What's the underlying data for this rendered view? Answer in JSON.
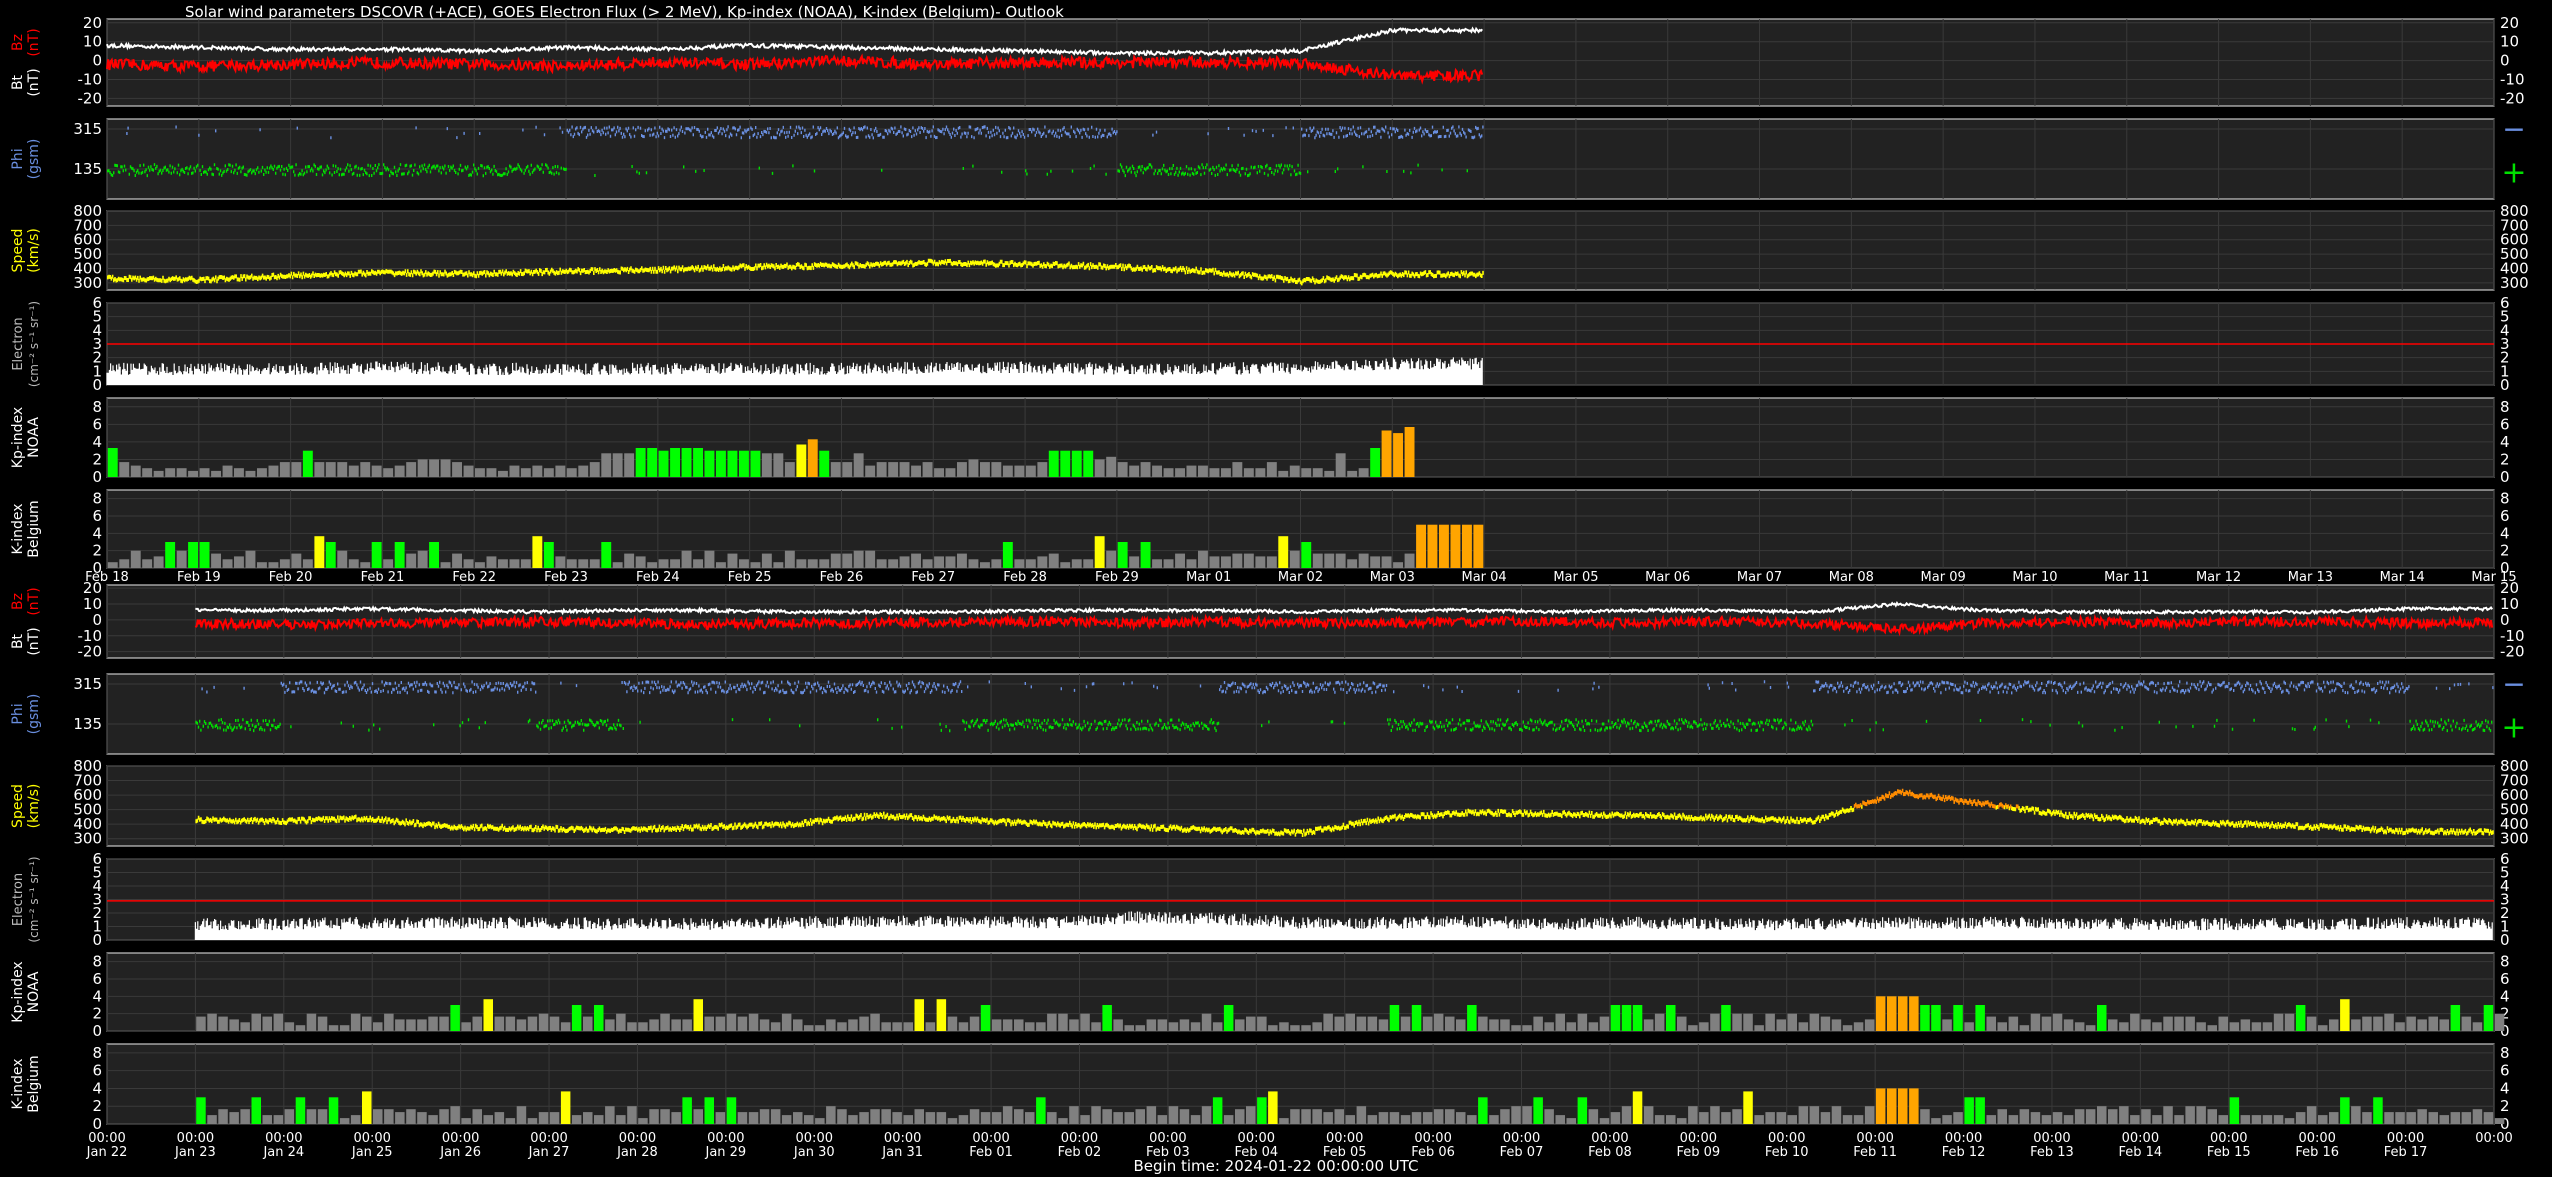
{
  "header": {
    "title": "Solar wind parameters DSCOVR (+ACE), GOES Electron Flux (> 2 MeV), Kp-index (NOAA), K-index (Belgium)- Outlook"
  },
  "footer": {
    "begin_time": "Begin time: 2024-01-22 00:00:00 UTC"
  },
  "colors": {
    "bz": "#ff0000",
    "bt": "#ffffff",
    "phi_away": "#6a8fe0",
    "phi_toward": "#00e000",
    "speed": "#ffff00",
    "speed_high": "#ff8c00",
    "electron": "#ffffff",
    "electron_threshold": "#ff0000",
    "k_quiet": "#808080",
    "k_active": "#00ff00",
    "k_minor": "#ffff00",
    "k_moderate": "#ffa500",
    "k_strong": "#ff0000",
    "panel_bg": "#222222",
    "grid": "#3a3a3a"
  },
  "chart_data": [
    {
      "type": "multi-panel",
      "name": "upper",
      "x_tick_labels": [
        "Feb 18",
        "Feb 19",
        "Feb 20",
        "Feb 21",
        "Feb 22",
        "Feb 23",
        "Feb 24",
        "Feb 25",
        "Feb 26",
        "Feb 27",
        "Feb 28",
        "Feb 29",
        "Mar 01",
        "Mar 02",
        "Mar 03",
        "Mar 04",
        "Mar 05",
        "Mar 06",
        "Mar 07",
        "Mar 08",
        "Mar 09",
        "Mar 10",
        "Mar 11",
        "Mar 12",
        "Mar 13",
        "Mar 14",
        "Mar 15"
      ],
      "x_start": "2024-02-18",
      "data_days_shown": 15.0,
      "panels": [
        {
          "id": "bz-bt",
          "ylabel": [
            "Bt",
            "(nT)"
          ],
          "ylabel_red": [
            "Bz",
            "(nT)"
          ],
          "yticks": [
            -20,
            -10,
            0,
            10,
            20
          ],
          "ylim": [
            -24,
            22
          ],
          "series": [
            {
              "name": "Bt",
              "values": [
                8,
                7,
                6,
                6,
                5,
                7,
                6,
                8,
                7,
                6,
                5,
                4,
                4,
                5,
                16
              ]
            },
            {
              "name": "Bz",
              "values": [
                -2,
                -3,
                -2,
                -1,
                -2,
                -3,
                -1,
                -2,
                0,
                -2,
                -1,
                -1,
                -1,
                -1,
                -8
              ]
            }
          ]
        },
        {
          "id": "phi",
          "ylabel": [
            "Phi",
            "(gsm)"
          ],
          "yticks": [
            135,
            315
          ],
          "sign_labels": [
            "−",
            "+"
          ],
          "away_days": [
            0,
            0,
            0,
            0,
            0,
            1,
            1,
            1,
            1,
            1,
            1,
            0,
            0,
            1,
            1
          ],
          "k": 0
        },
        {
          "id": "speed",
          "ylabel": [
            "Speed",
            "(km/s)"
          ],
          "yticks": [
            300,
            400,
            500,
            600,
            700,
            800
          ],
          "ylim": [
            250,
            800
          ],
          "values": [
            330,
            320,
            350,
            370,
            360,
            380,
            390,
            410,
            420,
            440,
            430,
            410,
            380,
            310,
            360
          ]
        },
        {
          "id": "electron",
          "ylabel": [
            "Electron",
            "(cm⁻² s⁻¹ sr⁻¹)"
          ],
          "yticks": [
            0,
            1,
            2,
            3,
            4,
            5,
            6
          ],
          "ylim": [
            0,
            6
          ],
          "threshold": 3,
          "values": [
            1.0,
            1.0,
            1.0,
            1.1,
            1.0,
            1.0,
            1.0,
            1.0,
            1.0,
            1.1,
            1.1,
            1.0,
            1.0,
            1.1,
            1.4
          ]
        },
        {
          "id": "kp",
          "ylabel": [
            "Kp-index",
            "NOAA"
          ],
          "yticks": [
            0,
            2,
            4,
            6,
            8
          ],
          "ylim": [
            0,
            9
          ],
          "values": [
            3.3,
            1.7,
            1.3,
            1,
            0.7,
            1,
            1,
            0.7,
            1,
            0.7,
            1.3,
            1,
            0.7,
            1,
            1.3,
            1.7,
            1.7,
            3,
            1.7,
            1.7,
            1.7,
            1.3,
            1.7,
            1.3,
            1,
            1.3,
            1.7,
            2,
            2,
            2,
            1.7,
            1.3,
            1,
            1,
            0.7,
            1.3,
            1,
            1.3,
            1,
            1.3,
            1,
            1.3,
            1.7,
            2.7,
            2.7,
            2.7,
            3.3,
            3.3,
            3,
            3.3,
            3.3,
            3.3,
            3,
            3,
            3,
            3,
            3,
            2.7,
            2.7,
            1.7,
            3.7,
            4.3,
            3,
            1.7,
            1.7,
            2.7,
            1.3,
            1.7,
            1.7,
            1.7,
            1.3,
            1.7,
            1,
            1,
            1.7,
            2,
            1.7,
            1.7,
            1.3,
            1.3,
            1.3,
            1.7,
            3,
            3,
            3,
            3,
            2,
            2.3,
            1.7,
            1.3,
            1.7,
            1.3,
            1,
            1,
            1.3,
            1.3,
            1,
            1,
            1.7,
            1,
            1,
            1.7,
            0.7,
            1.3,
            1,
            1,
            0.7,
            2.7,
            0.7,
            1,
            3.3,
            5.3,
            5,
            5.7
          ]
        },
        {
          "id": "k-belgium",
          "ylabel": [
            "K-index",
            "Belgium"
          ],
          "yticks": [
            0,
            2,
            4,
            6,
            8
          ],
          "ylim": [
            0,
            9
          ],
          "bars_per_day": 8,
          "days": 15
        }
      ]
    },
    {
      "type": "multi-panel",
      "name": "lower",
      "x_tick_labels": [
        "00:00\nJan 22",
        "00:00\nJan 23",
        "00:00\nJan 24",
        "00:00\nJan 25",
        "00:00\nJan 26",
        "00:00\nJan 27",
        "00:00\nJan 28",
        "00:00\nJan 29",
        "00:00\nJan 30",
        "00:00\nJan 31",
        "00:00\nFeb 01",
        "00:00\nFeb 02",
        "00:00\nFeb 03",
        "00:00\nFeb 04",
        "00:00\nFeb 05",
        "00:00\nFeb 06",
        "00:00\nFeb 07",
        "00:00\nFeb 08",
        "00:00\nFeb 09",
        "00:00\nFeb 10",
        "00:00\nFeb 11",
        "00:00\nFeb 12",
        "00:00\nFeb 13",
        "00:00\nFeb 14",
        "00:00\nFeb 15",
        "00:00\nFeb 16",
        "00:00\nFeb 17",
        "00:00"
      ],
      "x_start": "2024-01-22",
      "data_start_day": 1.0,
      "panels": [
        {
          "id": "bz-bt",
          "ylabel": [
            "Bt",
            "(nT)"
          ],
          "ylabel_red": [
            "Bz",
            "(nT)"
          ],
          "yticks": [
            -20,
            -10,
            0,
            10,
            20
          ],
          "ylim": [
            -24,
            22
          ],
          "series": [
            {
              "name": "Bt",
              "values": [
                6,
                6,
                7,
                6,
                5,
                6,
                6,
                5,
                5,
                5,
                6,
                6,
                6,
                5,
                6,
                6,
                5,
                6,
                6,
                5,
                10,
                6,
                5,
                5,
                5,
                5,
                7
              ]
            },
            {
              "name": "Bz",
              "values": [
                -2,
                -3,
                -2,
                -2,
                -1,
                -2,
                -3,
                -2,
                -2,
                -1,
                -1,
                -2,
                -1,
                -2,
                -2,
                -1,
                -1,
                -2,
                -1,
                -2,
                -6,
                -2,
                -1,
                -2,
                -1,
                -1,
                -2
              ]
            }
          ]
        },
        {
          "id": "phi",
          "ylabel": [
            "Phi",
            "(gsm)"
          ],
          "yticks": [
            135,
            315
          ],
          "sign_labels": [
            "−",
            "+"
          ],
          "away_days": [
            0,
            1,
            1,
            1,
            0,
            1,
            1,
            1,
            1,
            0,
            0,
            0,
            1,
            1,
            0,
            0,
            0,
            0,
            0,
            1,
            1,
            1,
            1,
            1,
            1,
            1,
            0
          ],
          "k": 1
        },
        {
          "id": "speed",
          "ylabel": [
            "Speed",
            "(km/s)"
          ],
          "yticks": [
            300,
            400,
            500,
            600,
            700,
            800
          ],
          "ylim": [
            250,
            800
          ],
          "values": [
            430,
            420,
            440,
            380,
            370,
            360,
            380,
            400,
            460,
            430,
            400,
            380,
            360,
            340,
            440,
            480,
            470,
            460,
            440,
            420,
            620,
            540,
            460,
            420,
            400,
            380,
            350
          ]
        },
        {
          "id": "electron",
          "ylabel": [
            "Electron",
            "(cm⁻² s⁻¹ sr⁻¹)"
          ],
          "yticks": [
            0,
            1,
            2,
            3,
            4,
            5,
            6
          ],
          "ylim": [
            0,
            6
          ],
          "threshold": 2.9,
          "values": [
            1.0,
            1.0,
            1.1,
            1.1,
            1.1,
            1.0,
            1.0,
            1.1,
            1.2,
            1.2,
            1.1,
            1.5,
            1.4,
            1.1,
            1.1,
            1.2,
            1.0,
            1.1,
            1.0,
            1.0,
            1.1,
            1.1,
            1.1,
            1.0,
            1.0,
            1.0,
            1.1
          ]
        },
        {
          "id": "kp",
          "ylabel": [
            "Kp-index",
            "NOAA"
          ],
          "yticks": [
            0,
            2,
            4,
            6,
            8
          ],
          "ylim": [
            0,
            9
          ],
          "bars_per_day": 8,
          "days": 27
        },
        {
          "id": "k-belgium",
          "ylabel": [
            "K-index",
            "Belgium"
          ],
          "yticks": [
            0,
            2,
            4,
            6,
            8
          ],
          "ylim": [
            0,
            9
          ],
          "bars_per_day": 8,
          "days": 27
        }
      ]
    }
  ]
}
